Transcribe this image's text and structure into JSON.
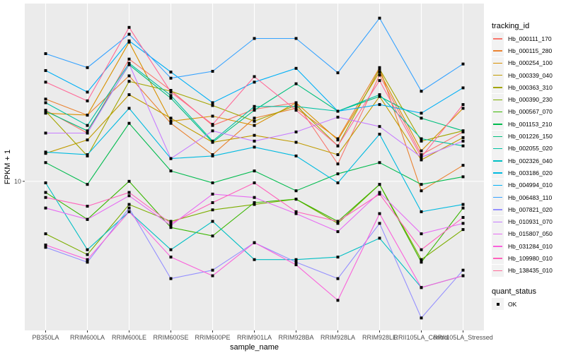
{
  "chart_data": {
    "type": "line",
    "title": "",
    "xlabel": "sample_name",
    "ylabel": "FPKM + 1",
    "y_scale": "log10",
    "ylim": [
      3.78,
      31.9
    ],
    "y_ticks": [
      {
        "value": 10,
        "label": "10"
      }
    ],
    "grid": true,
    "legend_position": "right",
    "categories": [
      "PB350LA",
      "RRIM600LA",
      "RRIM600LE",
      "RRIM600SE",
      "RRIM600PE",
      "RRIM901LA",
      "RRIM928BA",
      "RRIM928LA",
      "RRIM928LE",
      "RRII105LA_Control",
      "RRII105LA_Stressed"
    ],
    "legend_title": "tracking_id",
    "series": [
      {
        "name": "Hb_000111_170",
        "color": "#F8766D",
        "values": [
          15.9,
          13.7,
          22.2,
          18.1,
          14.4,
          16.0,
          16.7,
          11.2,
          20.0,
          11.9,
          13.8
        ]
      },
      {
        "name": "Hb_000115_280",
        "color": "#EA8331",
        "values": [
          17.1,
          15.4,
          19.9,
          14.6,
          11.9,
          15.1,
          16.1,
          13.2,
          21.0,
          9.4,
          11.1
        ]
      },
      {
        "name": "Hb_000254_100",
        "color": "#D89000",
        "values": [
          15.6,
          15.4,
          24.8,
          14.8,
          15.3,
          14.4,
          16.7,
          13.1,
          20.4,
          12.2,
          16.1
        ]
      },
      {
        "name": "Hb_000339_040",
        "color": "#C09B00",
        "values": [
          12.0,
          13.1,
          17.6,
          15.1,
          12.9,
          13.5,
          12.9,
          11.9,
          17.4,
          11.5,
          13.3
        ]
      },
      {
        "name": "Hb_000363_310",
        "color": "#A3A500",
        "values": [
          15.8,
          11.8,
          19.2,
          18.0,
          16.4,
          14.8,
          16.4,
          12.6,
          20.8,
          13.0,
          13.9
        ]
      },
      {
        "name": "Hb_000390_230",
        "color": "#7CAE00",
        "values": [
          7.1,
          6.2,
          8.6,
          7.7,
          8.3,
          8.6,
          8.9,
          7.6,
          9.8,
          6.0,
          7.3
        ]
      },
      {
        "name": "Hb_000567_070",
        "color": "#39B600",
        "values": [
          9.3,
          7.8,
          10.0,
          7.4,
          7.0,
          8.7,
          8.9,
          7.7,
          9.8,
          5.9,
          8.4
        ]
      },
      {
        "name": "Hb_001153_210",
        "color": "#00BB4E",
        "values": [
          11.3,
          9.8,
          14.6,
          10.7,
          9.9,
          10.7,
          9.4,
          10.5,
          11.3,
          9.8,
          10.3
        ]
      },
      {
        "name": "Hb_001226_150",
        "color": "#00BF7D",
        "values": [
          15.8,
          13.9,
          21.4,
          17.2,
          12.9,
          15.9,
          18.9,
          15.8,
          17.4,
          15.1,
          13.9
        ]
      },
      {
        "name": "Hb_002055_020",
        "color": "#00C1A3",
        "values": [
          16.7,
          14.4,
          21.6,
          17.5,
          13.0,
          16.3,
          16.3,
          15.8,
          17.6,
          13.2,
          12.6
        ]
      },
      {
        "name": "Hb_002326_040",
        "color": "#00BFC4",
        "values": [
          9.9,
          6.4,
          8.2,
          6.4,
          7.7,
          6.0,
          6.0,
          6.1,
          6.9,
          5.0,
          5.4
        ]
      },
      {
        "name": "Hb_003186_020",
        "color": "#00BAE0",
        "values": [
          12.1,
          11.9,
          16.1,
          11.6,
          11.8,
          12.5,
          11.8,
          9.9,
          13.6,
          8.2,
          8.6
        ]
      },
      {
        "name": "Hb_004994_010",
        "color": "#00B0F6",
        "values": [
          20.6,
          17.9,
          25.0,
          20.4,
          16.7,
          19.1,
          20.9,
          15.8,
          16.5,
          15.6,
          18.4
        ]
      },
      {
        "name": "Hb_006483_110",
        "color": "#35A2FF",
        "values": [
          23.0,
          21.0,
          26.1,
          19.6,
          20.5,
          25.4,
          25.4,
          20.3,
          29.0,
          18.0,
          21.5
        ]
      },
      {
        "name": "Hb_007821_020",
        "color": "#9590FF",
        "values": [
          6.5,
          5.9,
          8.4,
          5.3,
          5.6,
          6.7,
          5.9,
          5.3,
          7.6,
          4.1,
          5.6
        ]
      },
      {
        "name": "Hb_010931_070",
        "color": "#C77CFF",
        "values": [
          13.7,
          13.7,
          21.5,
          11.6,
          13.9,
          13.0,
          13.8,
          15.2,
          14.3,
          11.7,
          13.0
        ]
      },
      {
        "name": "Hb_015807_050",
        "color": "#E76BF3",
        "values": [
          8.4,
          7.8,
          9.1,
          7.5,
          9.2,
          9.0,
          8.1,
          7.2,
          9.3,
          7.1,
          7.6
        ]
      },
      {
        "name": "Hb_031284_010",
        "color": "#FA62DB",
        "values": [
          6.6,
          6.0,
          8.2,
          6.1,
          5.4,
          6.7,
          5.8,
          4.6,
          8.1,
          5.0,
          5.4
        ]
      },
      {
        "name": "Hb_109980_010",
        "color": "#FF62BC",
        "values": [
          9.0,
          8.5,
          9.3,
          7.6,
          8.7,
          9.9,
          8.2,
          7.7,
          9.2,
          6.4,
          7.9
        ]
      },
      {
        "name": "Hb_138435_010",
        "color": "#FF6A98",
        "values": [
          19.1,
          16.9,
          27.3,
          17.9,
          14.5,
          19.8,
          15.9,
          12.6,
          19.3,
          11.7,
          16.5
        ]
      }
    ],
    "shape_legend": {
      "title": "quant_status",
      "items": [
        {
          "label": "OK",
          "shape": "square",
          "color": "#000000"
        }
      ]
    },
    "panel_background": "#EBEBEB",
    "gridline_color": "#FFFFFF"
  }
}
